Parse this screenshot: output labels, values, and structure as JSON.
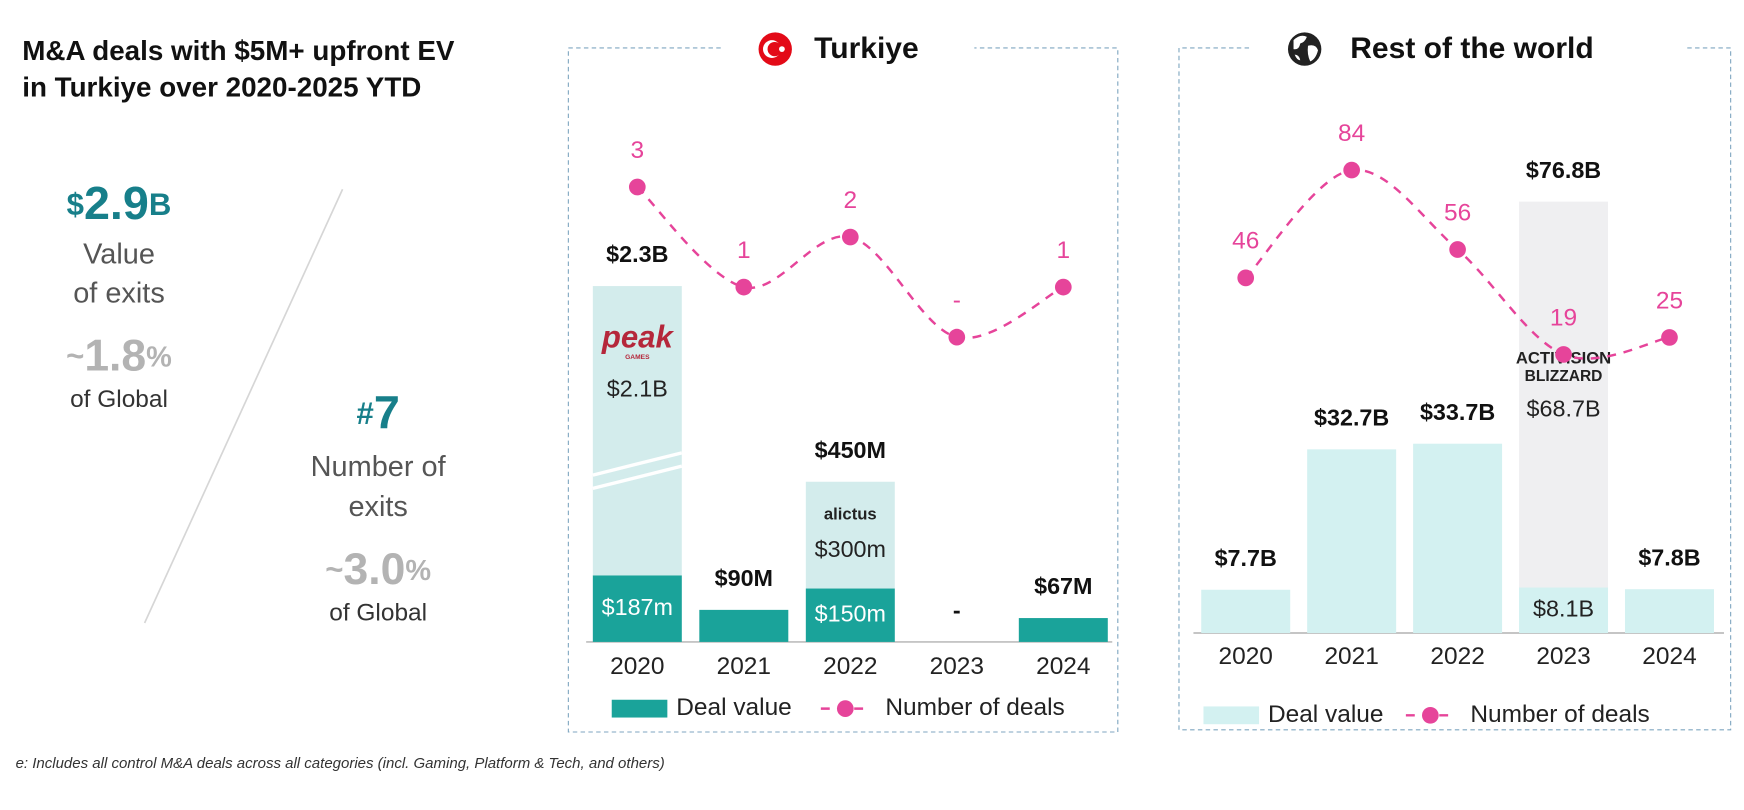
{
  "header": {
    "title_lines": [
      "M&A deals with $5M+ upfront EV",
      "in Turkiye over 2020-2025 YTD"
    ]
  },
  "stats": [
    {
      "value": {
        "prefix": "$",
        "number": "2.9",
        "suffix": "B"
      },
      "label_lines": [
        "Value",
        "of exits"
      ],
      "share": {
        "prefix": "~",
        "number": "1.8",
        "suffix": "%"
      },
      "share_label": "of Global"
    },
    {
      "value": {
        "prefix": "#",
        "number": "7"
      },
      "label_lines": [
        "Number of",
        "exits"
      ],
      "share": {
        "prefix": "~",
        "number": "3.0",
        "suffix": "%"
      },
      "share_label": "of Global"
    }
  ],
  "chart_data": [
    {
      "type": "bar",
      "title": "Turkiye",
      "categories": [
        "2020",
        "2021",
        "2022",
        "2023",
        "2024"
      ],
      "axis_break": true,
      "series": [
        {
          "name": "Deal value",
          "color": "#1aa39a",
          "inside_label_color": "#ffffff",
          "values": [
            187,
            90,
            150,
            0,
            67
          ],
          "value_labels": [
            "$187m",
            "$90M",
            "$150m",
            "-",
            "$67M"
          ]
        },
        {
          "color": "#d3ecec",
          "values": [
            2100,
            null,
            300,
            null,
            null
          ],
          "value_labels": [
            "$2.1B",
            null,
            "$300m",
            null,
            null
          ],
          "logos": [
            [
              "peak",
              "GAMES"
            ],
            null,
            [
              "alictus"
            ],
            null,
            null
          ]
        },
        {
          "name": "Number of deals",
          "type": "line",
          "color": "#e6449a",
          "values": [
            3,
            1,
            2,
            0,
            1
          ],
          "value_labels": [
            "3",
            "1",
            "2",
            "-",
            "1"
          ]
        }
      ],
      "totals": {
        "values": [
          2300,
          null,
          450,
          null,
          null
        ],
        "value_labels": [
          "$2.3B",
          null,
          "$450M",
          null,
          null
        ]
      }
    },
    {
      "type": "bar",
      "title": "Rest of the world",
      "categories": [
        "2020",
        "2021",
        "2022",
        "2023",
        "2024"
      ],
      "axis_break": false,
      "series": [
        {
          "name": "Deal value",
          "color": "#d3f1f1",
          "inside_label_color": "#222222",
          "values": [
            7.7,
            32.7,
            33.7,
            8.1,
            7.8
          ],
          "value_labels": [
            "$7.7B",
            "$32.7B",
            "$33.7B",
            "$8.1B",
            "$7.8B"
          ]
        },
        {
          "color": "#efeff1",
          "values": [
            null,
            null,
            null,
            68.7,
            null
          ],
          "value_labels": [
            null,
            null,
            null,
            "$68.7B",
            null
          ],
          "logos": [
            null,
            null,
            null,
            [
              "ACTIVISION",
              "BLIZZARD"
            ],
            null
          ]
        },
        {
          "name": "Number of deals",
          "type": "line",
          "color": "#e6449a",
          "values": [
            46,
            84,
            56,
            19,
            25
          ]
        }
      ],
      "totals": {
        "values": [
          null,
          null,
          null,
          76.8,
          null
        ],
        "value_labels": [
          null,
          null,
          null,
          "$76.8B",
          null
        ]
      }
    }
  ],
  "footnote": "e: Includes all control M&A deals across all categories (incl. Gaming, Platform & Tech, and others)"
}
